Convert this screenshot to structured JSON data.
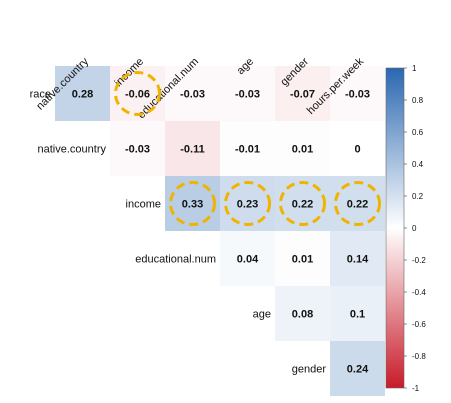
{
  "chart_data": {
    "type": "heatmap",
    "title": "",
    "columns": [
      "native.country",
      "income",
      "educational.num",
      "age",
      "gender",
      "hours.per.week"
    ],
    "rows": [
      "race",
      "native.country",
      "income",
      "educational.num",
      "age",
      "gender"
    ],
    "cells": [
      [
        0.28,
        -0.06,
        -0.03,
        -0.03,
        -0.07,
        -0.03
      ],
      [
        null,
        -0.03,
        -0.11,
        -0.01,
        0.01,
        0
      ],
      [
        null,
        null,
        0.33,
        0.23,
        0.22,
        0.22
      ],
      [
        null,
        null,
        null,
        0.04,
        0.01,
        0.14
      ],
      [
        null,
        null,
        null,
        null,
        0.08,
        0.1
      ],
      [
        null,
        null,
        null,
        null,
        null,
        0.24
      ]
    ],
    "cell_labels": [
      [
        "0.28",
        "-0.06",
        "-0.03",
        "-0.03",
        "-0.07",
        "-0.03"
      ],
      [
        null,
        "-0.03",
        "-0.11",
        "-0.01",
        "0.01",
        "0"
      ],
      [
        null,
        null,
        "0.33",
        "0.23",
        "0.22",
        "0.22"
      ],
      [
        null,
        null,
        null,
        "0.04",
        "0.01",
        "0.14"
      ],
      [
        null,
        null,
        null,
        null,
        "0.08",
        "0.1"
      ],
      [
        null,
        null,
        null,
        null,
        null,
        "0.24"
      ]
    ],
    "highlighted_cells": [
      [
        0,
        1
      ],
      [
        2,
        2
      ],
      [
        2,
        3
      ],
      [
        2,
        4
      ],
      [
        2,
        5
      ]
    ],
    "colorbar": {
      "min": -1,
      "max": 1,
      "ticks": [
        "1",
        "0.8",
        "0.6",
        "0.4",
        "0.2",
        "0",
        "-0.2",
        "-0.4",
        "-0.6",
        "-0.8",
        "-1"
      ],
      "positive_color": "#2a67b1",
      "negative_color": "#c81b2a",
      "zero_color": "#ffffff"
    },
    "highlight_color": "#f0b400",
    "legend_position": "right"
  }
}
